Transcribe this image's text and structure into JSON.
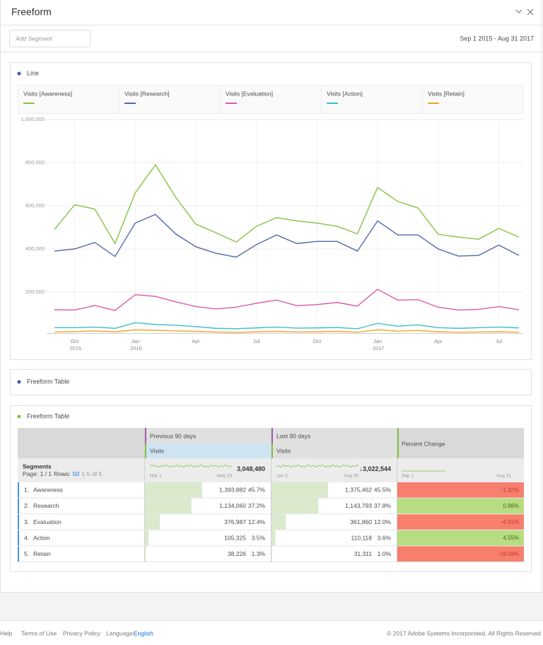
{
  "header": {
    "title": "Freeform",
    "add_segment": "Add Segment",
    "date_range": "Sep 1 2015 - Aug 31 2017"
  },
  "line_panel": {
    "title": "Line"
  },
  "chart_data": {
    "type": "line",
    "categories": [
      null,
      "Oct 2015",
      null,
      null,
      "Jan 2016",
      null,
      null,
      "Apr",
      null,
      null,
      "Jul",
      null,
      null,
      "Oct",
      null,
      null,
      "Jan 2017",
      null,
      null,
      "Apr",
      null,
      null,
      "Jul",
      null
    ],
    "series": [
      {
        "name": "Visits [Awareness]",
        "color": "#84c341",
        "values": [
          490000,
          605000,
          585000,
          425000,
          660000,
          790000,
          640000,
          515000,
          475000,
          432000,
          505000,
          545000,
          530000,
          520000,
          505000,
          470000,
          685000,
          620000,
          590000,
          468000,
          455000,
          445000,
          495000,
          455000
        ]
      },
      {
        "name": "Visits [Research]",
        "color": "#5468ac",
        "values": [
          390000,
          400000,
          430000,
          365000,
          520000,
          560000,
          470000,
          410000,
          380000,
          362000,
          420000,
          465000,
          425000,
          435000,
          435000,
          390000,
          530000,
          465000,
          465000,
          400000,
          367000,
          370000,
          418000,
          370000
        ]
      },
      {
        "name": "Visits [Evaluation]",
        "color": "#d85baa",
        "values": [
          118000,
          117000,
          138000,
          115000,
          188000,
          180000,
          155000,
          133000,
          122000,
          130000,
          148000,
          163000,
          137000,
          142000,
          152000,
          135000,
          213000,
          163000,
          165000,
          130000,
          117000,
          120000,
          133000,
          118000
        ]
      },
      {
        "name": "Visits [Action]",
        "color": "#3bbdd3",
        "values": [
          35000,
          35000,
          38000,
          32000,
          58000,
          50000,
          46000,
          40000,
          32000,
          30000,
          34000,
          38000,
          33000,
          34000,
          36000,
          30000,
          55000,
          42000,
          48000,
          35000,
          32000,
          35000,
          38000,
          34000
        ]
      },
      {
        "name": "Visits [Retain]",
        "color": "#f5a623",
        "values": [
          15000,
          17000,
          20000,
          16000,
          25000,
          23000,
          20000,
          18000,
          15000,
          13000,
          16000,
          18000,
          15000,
          16000,
          18000,
          14000,
          25000,
          19000,
          22000,
          16000,
          14000,
          15000,
          16000,
          14000
        ]
      }
    ],
    "ylim": [
      0,
      1000000
    ],
    "yticks": [
      {
        "value": 200000,
        "label": "200,000"
      },
      {
        "value": 400000,
        "label": "400,000"
      },
      {
        "value": 600000,
        "label": "600,000"
      },
      {
        "value": 800000,
        "label": "800,000"
      },
      {
        "value": 1000000,
        "label": "1,000,000"
      }
    ],
    "grid": true
  },
  "collapsed_panel": {
    "title": "Freeform Table"
  },
  "table_panel": {
    "title": "Freeform Table",
    "table": {
      "columns": [
        {
          "title": "Previous 90 days",
          "metric": "Visits",
          "total": "3,048,480",
          "start": "Mar 1",
          "end": "May 23"
        },
        {
          "title": "Last 90 days",
          "metric": "Visits",
          "trend": "↓",
          "total": "3,022,544",
          "start": "Jun 2",
          "end": "Aug 30"
        },
        {
          "title": "Percent Change",
          "start": "Sep 1",
          "end": "Aug 31"
        }
      ],
      "dimension": "Segments",
      "paging": {
        "page": "Page: 1 / 1",
        "rows_label": "Rows:",
        "rows": "50",
        "range": "1-5 of 5"
      },
      "rows": [
        {
          "rank": "1.",
          "name": "Awareness",
          "prev": "1,393,882",
          "prev_pct": {
            "value": 45.7,
            "label": "45.7%"
          },
          "last": "1,375,462",
          "last_pct": {
            "value": 45.5,
            "label": "45.5%"
          },
          "change": {
            "value": -1.32,
            "label": "-1.32%"
          }
        },
        {
          "rank": "2.",
          "name": "Research",
          "prev": "1,134,060",
          "prev_pct": {
            "value": 37.2,
            "label": "37.2%"
          },
          "last": "1,143,793",
          "last_pct": {
            "value": 37.8,
            "label": "37.8%"
          },
          "change": {
            "value": 0.86,
            "label": "0.86%"
          }
        },
        {
          "rank": "3.",
          "name": "Evaluation",
          "prev": "376,987",
          "prev_pct": {
            "value": 12.4,
            "label": "12.4%"
          },
          "last": "361,860",
          "last_pct": {
            "value": 12.0,
            "label": "12.0%"
          },
          "change": {
            "value": -4.01,
            "label": "-4.01%"
          }
        },
        {
          "rank": "4.",
          "name": "Action",
          "prev": "105,325",
          "prev_pct": {
            "value": 3.5,
            "label": "3.5%"
          },
          "last": "110,118",
          "last_pct": {
            "value": 3.6,
            "label": "3.6%"
          },
          "change": {
            "value": 4.55,
            "label": "4.55%"
          }
        },
        {
          "rank": "5.",
          "name": "Retain",
          "prev": "38,226",
          "prev_pct": {
            "value": 1.3,
            "label": "1.3%"
          },
          "last": "31,311",
          "last_pct": {
            "value": 1.0,
            "label": "1.0%"
          },
          "change": {
            "value": -18.09,
            "label": "-18.09%"
          }
        }
      ]
    }
  },
  "footer": {
    "help": "Help",
    "terms": "Terms of Use",
    "privacy": "Privacy Policy",
    "language_label": "Language:",
    "language": "English",
    "copyright": "© 2017 Adobe Systems Incorporated. All Rights Reserved"
  }
}
